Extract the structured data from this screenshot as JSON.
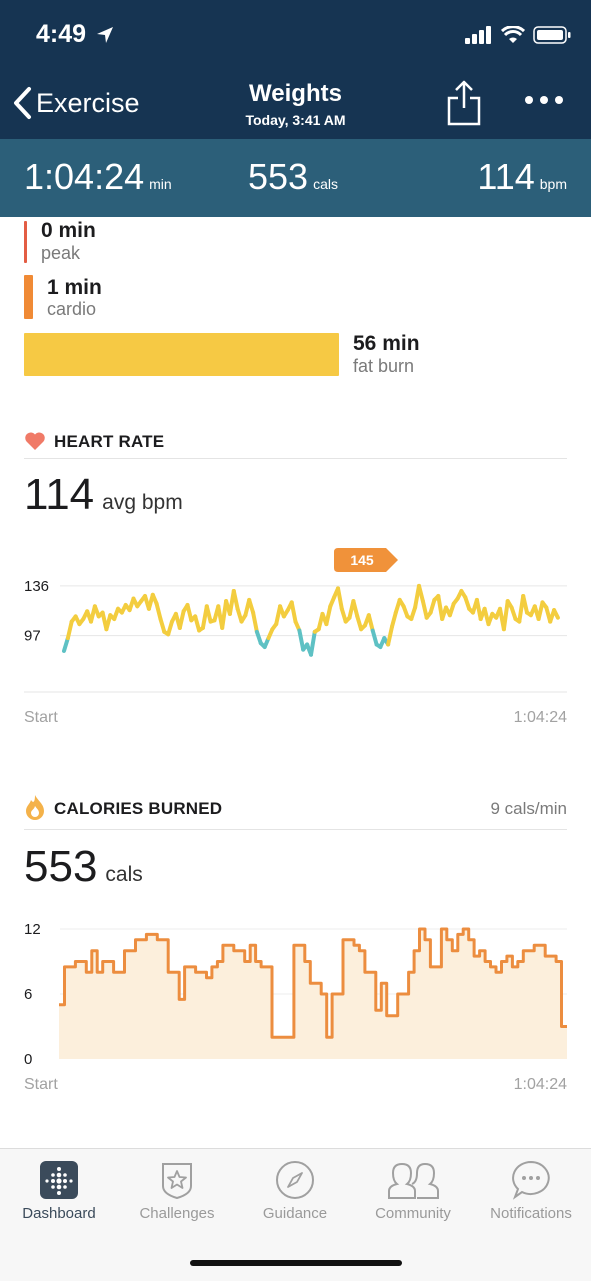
{
  "status": {
    "time": "4:49"
  },
  "nav": {
    "back_label": "Exercise",
    "title": "Weights",
    "subtitle": "Today, 3:41 AM"
  },
  "stats": [
    {
      "value": "1:04:24",
      "unit": "min"
    },
    {
      "value": "553",
      "unit": "cals"
    },
    {
      "value": "114",
      "unit": "bpm"
    }
  ],
  "zones": [
    {
      "value": "0 min",
      "label": "peak",
      "color": "#e35d44",
      "minutes": 0
    },
    {
      "value": "1 min",
      "label": "cardio",
      "color": "#f08a35",
      "minutes": 1
    },
    {
      "value": "56 min",
      "label": "fat burn",
      "color": "#f6c944",
      "minutes": 56
    }
  ],
  "heart_rate": {
    "title": "HEART RATE",
    "avg_value": "114",
    "avg_unit": "avg bpm",
    "start_label": "Start",
    "end_label": "1:04:24",
    "max_badge": "145",
    "colors": {
      "line": "#f3cd3f",
      "low": "#5ec1c4",
      "badge": "#f0923a"
    }
  },
  "calories": {
    "title": "CALORIES BURNED",
    "rate": "9 cals/min",
    "total_value": "553",
    "total_unit": "cals",
    "start_label": "Start",
    "end_label": "1:04:24",
    "colors": {
      "line": "#ec8d3f",
      "fill": "#fcefdc"
    }
  },
  "chart_data": [
    {
      "type": "line",
      "title": "HEART RATE",
      "yticks": [
        97,
        136
      ],
      "ylim": [
        70,
        150
      ],
      "x_range_min": [
        0,
        64.4
      ],
      "low_threshold": 97,
      "max_label": 145,
      "series": [
        {
          "x": [
            0,
            0.5,
            1,
            1.5,
            2,
            2.5,
            3,
            3.5,
            4,
            4.5,
            5,
            5.5,
            6,
            6.5,
            7,
            7.5,
            8,
            8.5,
            9,
            9.5,
            10,
            10.5,
            11,
            11.5,
            12,
            12.5,
            13,
            13.5,
            14,
            14.5,
            15,
            15.5,
            16,
            16.5,
            17,
            17.5,
            18,
            18.5,
            19,
            19.5,
            20,
            20.5,
            21,
            21.5,
            22,
            22.5,
            23,
            23.5,
            24,
            24.5,
            25,
            25.5,
            26,
            26.5,
            27,
            27.5,
            28,
            28.5,
            29,
            29.5,
            30,
            30.5,
            31,
            31.5,
            32,
            32.5,
            33,
            33.5,
            34,
            34.5,
            35,
            35.5,
            36,
            36.5,
            37,
            37.5,
            38,
            38.5,
            39,
            39.5,
            40,
            40.5,
            41,
            41.5,
            42,
            42.5,
            43,
            43.5,
            44,
            44.5,
            45,
            45.5,
            46,
            46.5,
            47,
            47.5,
            48,
            48.5,
            49,
            49.5,
            50,
            50.5,
            51,
            51.5,
            52,
            52.5,
            53,
            53.5,
            54,
            54.5,
            55,
            55.5,
            56,
            56.5,
            57,
            57.5,
            58,
            58.5,
            59,
            59.5,
            60,
            60.5,
            61,
            61.5,
            62,
            62.5,
            63,
            63.5,
            64
          ],
          "y": [
            85,
            95,
            108,
            112,
            106,
            110,
            116,
            108,
            120,
            112,
            115,
            102,
            113,
            110,
            118,
            115,
            121,
            117,
            126,
            120,
            124,
            128,
            118,
            129,
            122,
            110,
            100,
            98,
            108,
            114,
            103,
            116,
            121,
            109,
            112,
            101,
            103,
            120,
            108,
            109,
            120,
            103,
            124,
            114,
            132,
            118,
            108,
            113,
            125,
            115,
            100,
            91,
            88,
            95,
            102,
            106,
            120,
            112,
            117,
            123,
            108,
            101,
            86,
            90,
            82,
            100,
            102,
            114,
            106,
            120,
            127,
            134,
            118,
            108,
            111,
            124,
            112,
            102,
            105,
            113,
            101,
            90,
            88,
            95,
            90,
            104,
            115,
            125,
            120,
            112,
            110,
            119,
            136,
            124,
            111,
            115,
            125,
            128,
            110,
            119,
            113,
            122,
            126,
            132,
            127,
            118,
            115,
            125,
            110,
            118,
            106,
            114,
            111,
            118,
            102,
            124,
            119,
            110,
            108,
            128,
            115,
            113,
            120,
            110,
            123,
            119,
            108,
            117,
            111
          ]
        }
      ]
    },
    {
      "type": "area",
      "title": "CALORIES BURNED",
      "yticks": [
        0,
        6,
        12
      ],
      "ylim": [
        0,
        12
      ],
      "x_range_min": [
        0,
        64.4
      ],
      "series": [
        {
          "values": [
            5,
            8.5,
            8.5,
            9,
            9,
            8,
            10,
            8,
            9,
            9,
            8,
            8,
            10,
            10,
            11,
            11,
            11.5,
            11.5,
            11,
            11,
            8,
            8,
            5.5,
            8.5,
            8.5,
            8,
            8,
            7.5,
            8.5,
            9,
            10.5,
            10.5,
            10,
            10,
            9,
            10.5,
            9,
            8.5,
            8.5,
            2,
            2,
            2,
            2,
            10.5,
            10.5,
            9,
            7,
            7,
            6,
            2,
            6,
            6,
            11,
            11,
            10.5,
            10,
            8,
            8,
            4.5,
            7,
            4,
            4,
            6,
            6,
            8,
            10,
            12,
            11,
            8.5,
            8.5,
            12,
            11,
            10,
            11.5,
            12,
            11,
            9.5,
            10,
            9,
            8.5,
            8,
            9,
            9.5,
            8.5,
            9,
            10,
            10,
            10.5,
            10.5,
            9.5,
            9.5,
            9,
            3
          ]
        }
      ]
    }
  ]
}
